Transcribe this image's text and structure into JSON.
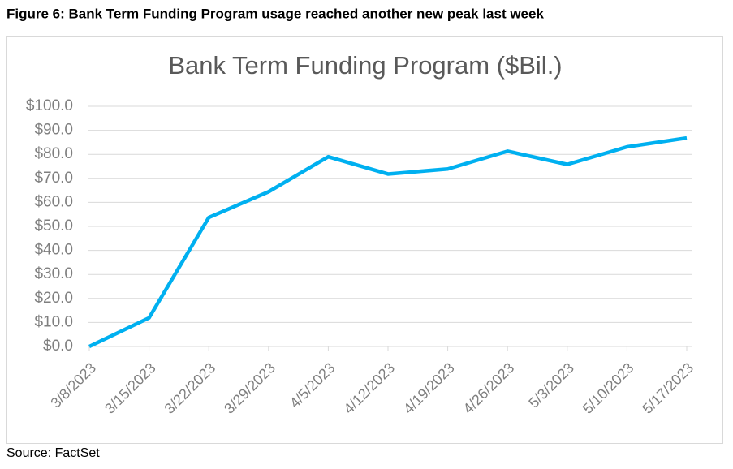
{
  "heading": "Figure 6: Bank Term Funding Program usage reached another new peak last week",
  "source": "Source: FactSet",
  "chart_data": {
    "type": "line",
    "title": "Bank Term Funding Program ($Bil.)",
    "categories": [
      "3/8/2023",
      "3/15/2023",
      "3/22/2023",
      "3/29/2023",
      "4/5/2023",
      "4/12/2023",
      "4/19/2023",
      "4/26/2023",
      "5/3/2023",
      "5/10/2023",
      "5/17/2023"
    ],
    "series": [
      {
        "name": "Bank Term Funding Program",
        "color": "#00b0f0",
        "values": [
          0,
          11.9,
          53.7,
          64.4,
          79.0,
          71.8,
          73.9,
          81.3,
          75.8,
          83.1,
          86.8
        ]
      }
    ],
    "ylim": [
      0,
      100
    ],
    "yticks": [
      {
        "value": 0,
        "label": "$0.0"
      },
      {
        "value": 10,
        "label": "$10.0"
      },
      {
        "value": 20,
        "label": "$20.0"
      },
      {
        "value": 30,
        "label": "$30.0"
      },
      {
        "value": 40,
        "label": "$40.0"
      },
      {
        "value": 50,
        "label": "$50.0"
      },
      {
        "value": 60,
        "label": "$60.0"
      },
      {
        "value": 70,
        "label": "$70.0"
      },
      {
        "value": 80,
        "label": "$80.0"
      },
      {
        "value": 90,
        "label": "$90.0"
      },
      {
        "value": 100,
        "label": "$100.0"
      }
    ],
    "grid": true
  }
}
